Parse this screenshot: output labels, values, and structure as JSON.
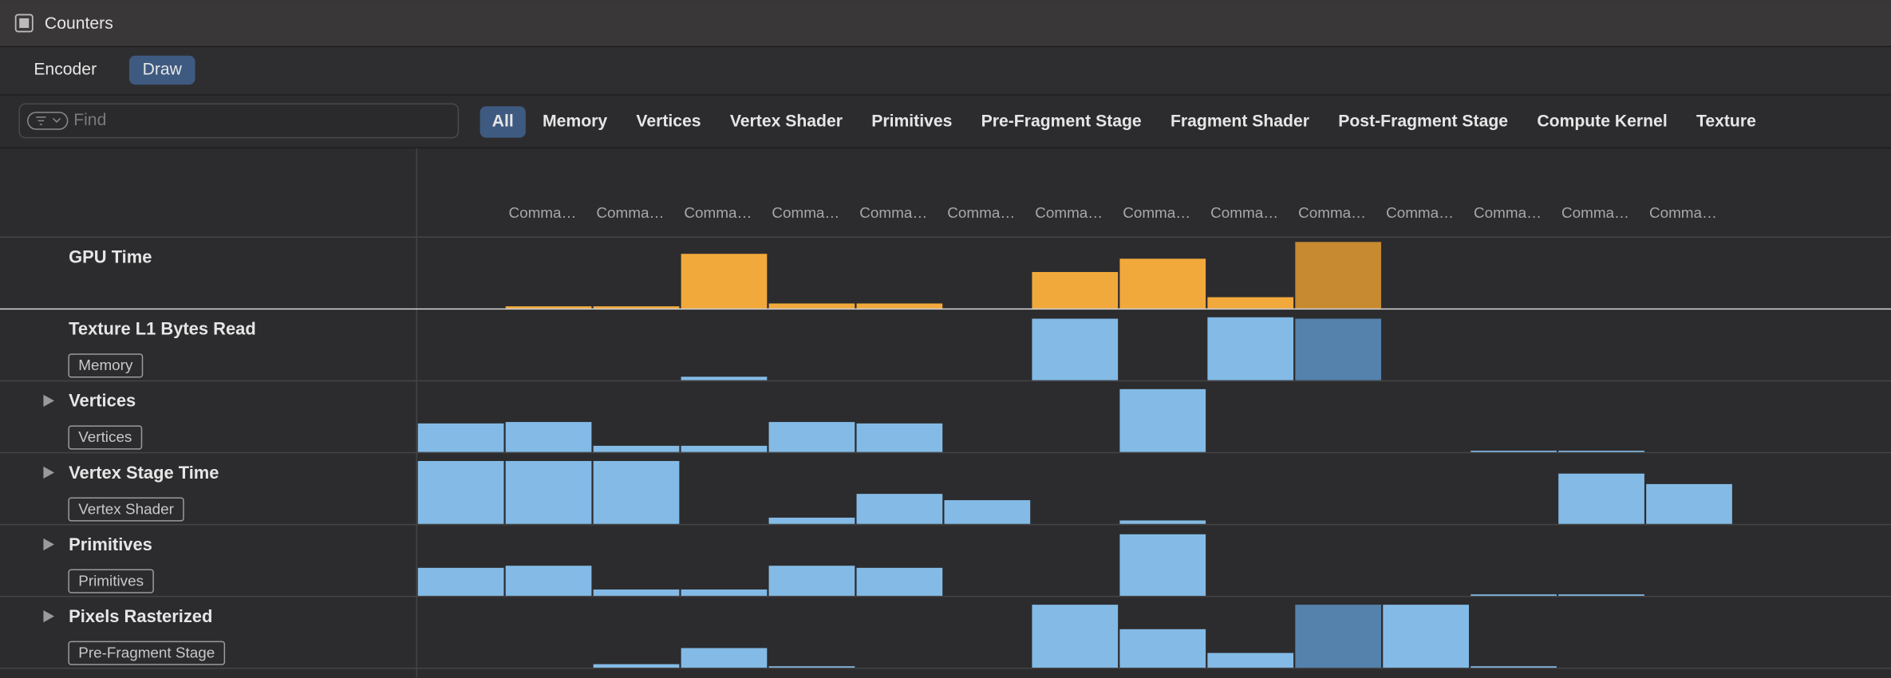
{
  "window": {
    "title": "Counters"
  },
  "modes": [
    "Encoder",
    "Draw"
  ],
  "selected_mode": 1,
  "search": {
    "placeholder": "Find"
  },
  "filters": [
    "All",
    "Memory",
    "Vertices",
    "Vertex Shader",
    "Primitives",
    "Pre-Fragment Stage",
    "Fragment Shader",
    "Post-Fragment Stage",
    "Compute Kernel",
    "Texture"
  ],
  "selected_filter": 0,
  "columns": [
    null,
    "Comma…",
    "Comma…",
    "Comma…",
    "Comma…",
    "Comma…",
    "Comma…",
    "Comma…",
    "Comma…",
    "Comma…",
    "Comma…",
    "Comma…",
    "Comma…",
    "Comma…",
    "Comma…"
  ],
  "selected_column": 10,
  "ylim": [
    0,
    100
  ],
  "rows": [
    {
      "name": "GPU Time",
      "color": "#f2a93b",
      "selected_color": "#c78a30",
      "values": [
        0,
        3,
        3,
        78,
        7,
        7,
        0,
        52,
        71,
        16,
        95,
        0,
        0,
        0,
        0
      ]
    },
    {
      "name": "Texture L1 Bytes Read",
      "tag": "Memory",
      "color": "#84bbe6",
      "selected_color": "#5582ad",
      "values": [
        0,
        0,
        0,
        5,
        0,
        0,
        0,
        88,
        0,
        90,
        88,
        0,
        0,
        0,
        0
      ]
    },
    {
      "name": "Vertices",
      "tag": "Vertices",
      "expandable": true,
      "color": "#84bbe6",
      "selected_color": "#5582ad",
      "values": [
        41,
        43,
        9,
        9,
        43,
        41,
        0,
        0,
        90,
        0,
        0,
        0,
        2,
        2,
        0
      ]
    },
    {
      "name": "Vertex Stage Time",
      "tag": "Vertex Shader",
      "expandable": true,
      "color": "#84bbe6",
      "selected_color": "#5582ad",
      "values": [
        90,
        90,
        90,
        0,
        9,
        43,
        34,
        0,
        5,
        0,
        0,
        0,
        0,
        72,
        57
      ]
    },
    {
      "name": "Primitives",
      "tag": "Primitives",
      "expandable": true,
      "color": "#84bbe6",
      "selected_color": "#5582ad",
      "values": [
        40,
        43,
        9,
        9,
        43,
        40,
        0,
        0,
        88,
        0,
        0,
        0,
        2,
        2,
        0
      ]
    },
    {
      "name": "Pixels Rasterized",
      "tag": "Pre-Fragment Stage",
      "expandable": true,
      "color": "#84bbe6",
      "selected_color": "#5582ad",
      "values": [
        0,
        0,
        5,
        28,
        2,
        0,
        0,
        90,
        55,
        21,
        90,
        90,
        2,
        0,
        0
      ]
    }
  ]
}
